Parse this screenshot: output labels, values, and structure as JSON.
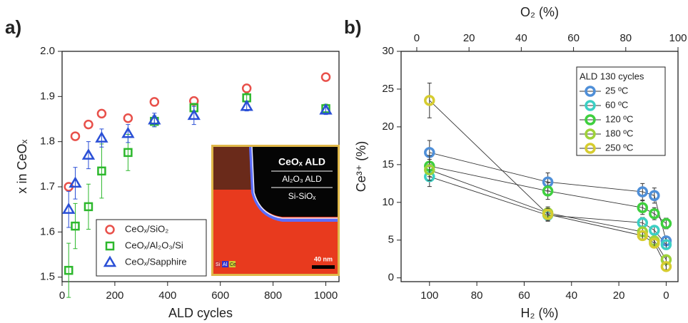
{
  "chart_data": [
    {
      "type": "scatter",
      "panel_label": "a)",
      "xlabel": "ALD cycles",
      "ylabel": "x in CeOₓ",
      "xlim": [
        0,
        1050
      ],
      "xticks": [
        0,
        200,
        400,
        600,
        800,
        1000
      ],
      "ylim": [
        1.49,
        2.0
      ],
      "yticks": [
        1.5,
        1.6,
        1.7,
        1.8,
        1.9,
        {
          "value": 2.0,
          "label": "2.0"
        }
      ],
      "x": [
        25,
        50,
        100,
        150,
        250,
        350,
        500,
        700,
        1000
      ],
      "legend": "lower left",
      "series": [
        {
          "name": "CeOₓ/SiO₂",
          "color": "#e8504a",
          "marker": "circle",
          "values": [
            1.7,
            1.812,
            1.838,
            1.862,
            1.852,
            1.888,
            1.89,
            1.918,
            1.943
          ]
        },
        {
          "name": "CeOₓ/Al₂O₃/Si",
          "color": "#2db82d",
          "marker": "square",
          "values": [
            1.515,
            1.613,
            1.656,
            1.735,
            1.776,
            1.845,
            1.875,
            1.897,
            1.873
          ],
          "errors": [
            0.06,
            0.05,
            0.05,
            0.06,
            0.04,
            0.012,
            0.01,
            0.01,
            0.01
          ]
        },
        {
          "name": "CeOₓ/Sapphire",
          "color": "#2a4fd6",
          "marker": "triangle",
          "values": [
            1.65,
            1.708,
            1.77,
            1.808,
            1.818,
            1.848,
            1.858,
            1.878,
            1.87
          ],
          "errors": [
            0.04,
            0.035,
            0.03,
            0.02,
            0.02,
            0.015,
            0.02,
            0.01,
            0.01
          ]
        }
      ],
      "inset": {
        "labels": [
          "CeOₓ ALD",
          "Al₂O₃ ALD",
          "Si-SiOₓ"
        ],
        "elements": [
          "Si",
          "Al",
          "Ce"
        ],
        "scale_bar": "40 nm"
      }
    },
    {
      "type": "scatter",
      "panel_label": "b)",
      "xlabel": "H₂ (%)",
      "ylabel": "Ce³⁺ (%)",
      "x2label": "O₂ (%)",
      "xlim": [
        112,
        -5
      ],
      "xticks": [
        100,
        80,
        60,
        40,
        20,
        0
      ],
      "x2lim": [
        -6,
        100
      ],
      "x2ticks": [
        0,
        20,
        40,
        60,
        80,
        100
      ],
      "ylim": [
        -0.5,
        30
      ],
      "yticks": [
        0,
        5,
        10,
        15,
        20,
        25,
        30
      ],
      "x": [
        100,
        50,
        10,
        5,
        0
      ],
      "lines": true,
      "legend": "upper right",
      "legend_title": "ALD 130 cycles",
      "series": [
        {
          "name": "25 ºC",
          "color": "#4f8fd8",
          "marker": "ring",
          "values": [
            16.6,
            12.7,
            11.4,
            10.9,
            4.9
          ],
          "errors": [
            1.6,
            1.2,
            1.1,
            1.0,
            0.6
          ]
        },
        {
          "name": "60 ºC",
          "color": "#3ccfc4",
          "marker": "ring",
          "values": [
            13.4,
            8.3,
            7.3,
            6.3,
            4.4
          ],
          "errors": [
            1.3,
            0.8,
            0.7,
            0.6,
            0.5
          ]
        },
        {
          "name": "120 ºC",
          "color": "#3fcf3f",
          "marker": "ring",
          "values": [
            14.8,
            11.5,
            9.3,
            8.5,
            7.2
          ],
          "errors": [
            1.4,
            1.1,
            0.9,
            0.8,
            0.7
          ]
        },
        {
          "name": "180 ºC",
          "color": "#9fd23a",
          "marker": "ring",
          "values": [
            14.3,
            8.6,
            6.1,
            4.9,
            2.4
          ],
          "errors": [
            1.4,
            0.8,
            0.6,
            0.5,
            0.4
          ]
        },
        {
          "name": "250 ºC",
          "color": "#d6cc30",
          "marker": "ring",
          "values": [
            23.5,
            8.4,
            5.6,
            4.6,
            1.5
          ],
          "errors": [
            2.3,
            0.8,
            0.6,
            0.5,
            0.4
          ]
        }
      ]
    }
  ]
}
